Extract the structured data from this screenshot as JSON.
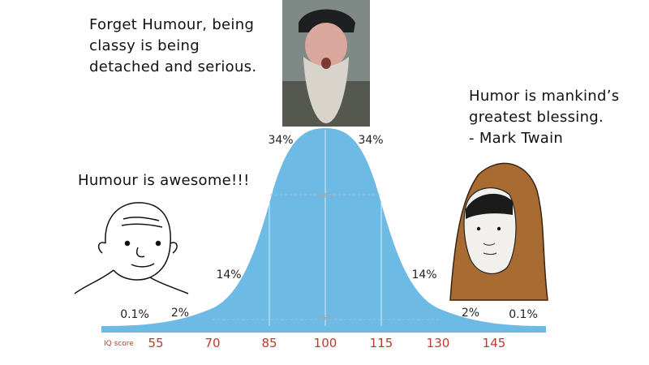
{
  "quotes": {
    "top": "Forget Humour, being\nclassy is being\ndetached and serious.",
    "left": "Humour is awesome!!!",
    "right": "Humor is mankind’s\ngreatest blessing.\n- Mark Twain"
  },
  "curve": {
    "axis_label": "IQ score",
    "ticks": [
      "55",
      "70",
      "85",
      "100",
      "115",
      "130",
      "145"
    ],
    "percent_labels": [
      "34%",
      "34%",
      "14%",
      "14%",
      "2%",
      "2%",
      "0.1%",
      "0.1%"
    ],
    "inner_labels": [
      "68%",
      "95%"
    ]
  },
  "colors": {
    "curve": "#6dbae4",
    "tick": "#c0392b",
    "axis_bar": "#6dbae4"
  }
}
